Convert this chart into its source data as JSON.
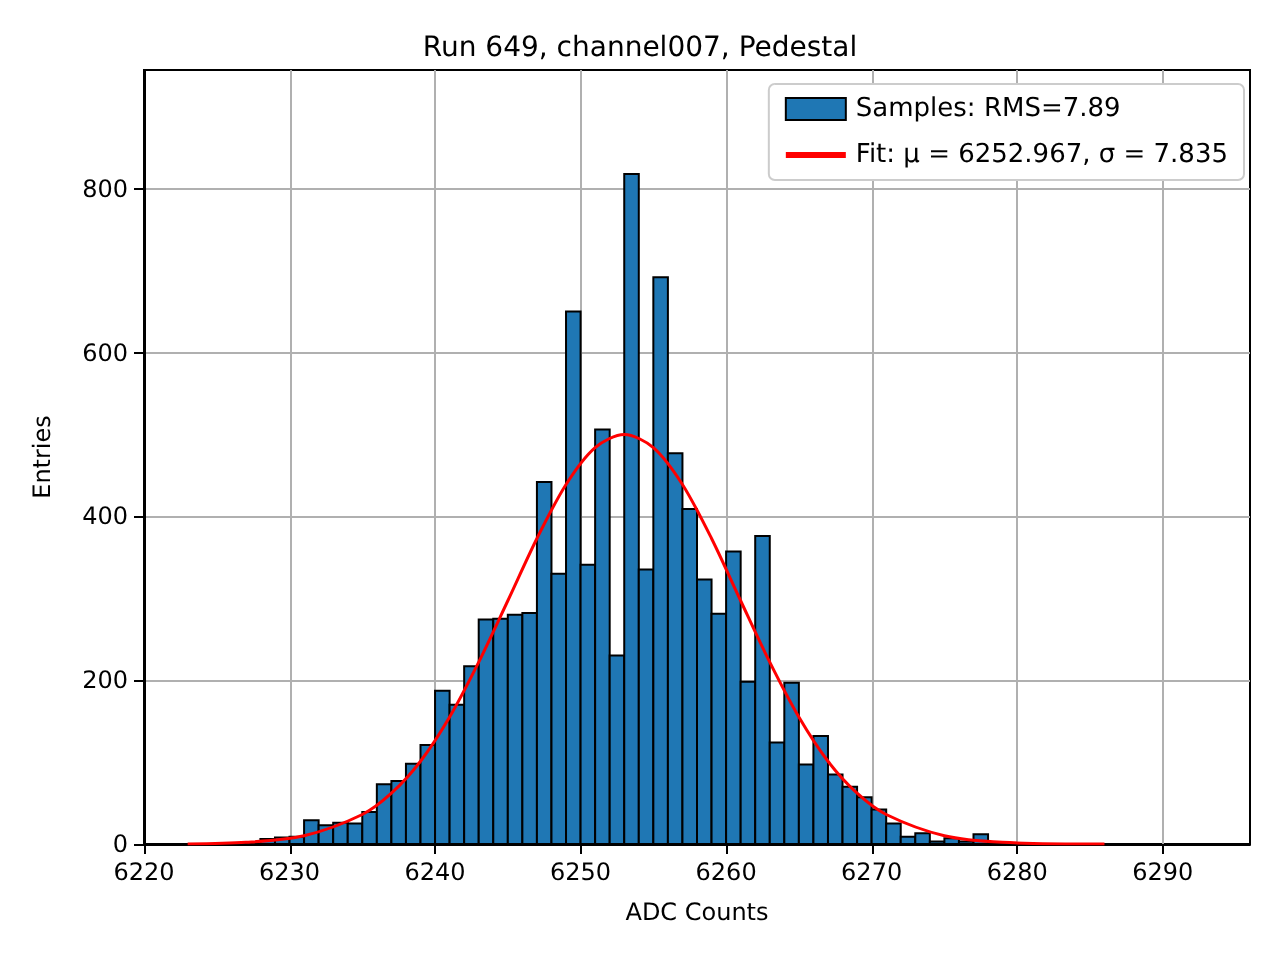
{
  "chart_data": {
    "type": "histogram",
    "title": "Run 649, channel007, Pedestal",
    "xlabel": "ADC Counts",
    "ylabel": "Entries",
    "bins": [
      6228,
      6229,
      6230,
      6231,
      6232,
      6233,
      6234,
      6235,
      6236,
      6237,
      6238,
      6239,
      6240,
      6241,
      6242,
      6243,
      6244,
      6245,
      6246,
      6247,
      6248,
      6249,
      6250,
      6251,
      6252,
      6253,
      6254,
      6255,
      6256,
      6257,
      6258,
      6259,
      6260,
      6261,
      6262,
      6263,
      6264,
      6265,
      6266,
      6267,
      6268,
      6269,
      6270,
      6271,
      6272,
      6273,
      6274,
      6275,
      6276,
      6277,
      6278
    ],
    "series": [
      {
        "name": "Samples: RMS=7.89",
        "color": "#1f77b4",
        "values": [
          6,
          8,
          9,
          29,
          23,
          26,
          25,
          39,
          73,
          77,
          98,
          121,
          187,
          170,
          217,
          274,
          275,
          280,
          282,
          442,
          330,
          650,
          341,
          506,
          230,
          818,
          335,
          692,
          477,
          409,
          323,
          281,
          357,
          198,
          376,
          124,
          197,
          97,
          132,
          85,
          70,
          57,
          42,
          25,
          9,
          13,
          3,
          7,
          3,
          12
        ]
      },
      {
        "name": "Fit: μ = 6252.967, σ = 7.835",
        "type": "line",
        "color": "#ff0000",
        "x": [
          6223,
          6227,
          6231,
          6235,
          6237,
          6239,
          6241,
          6243,
          6245,
          6247,
          6249,
          6251,
          6253,
          6255,
          6257,
          6259,
          6261,
          6263,
          6265,
          6267,
          6269,
          6271,
          6275,
          6279,
          6286
        ],
        "values": [
          0,
          2,
          10,
          36,
          62,
          101,
          155,
          222,
          297,
          373,
          439,
          484,
          500,
          484,
          439,
          373,
          297,
          222,
          155,
          101,
          62,
          36,
          10,
          2,
          0
        ]
      }
    ],
    "xlim": [
      6220,
      6296
    ],
    "xticks": [
      6220,
      6230,
      6240,
      6250,
      6260,
      6270,
      6280,
      6290
    ],
    "ylim": [
      0,
      945
    ],
    "yticks": [
      0,
      200,
      400,
      600,
      800
    ],
    "grid": true,
    "legend": "top right"
  }
}
